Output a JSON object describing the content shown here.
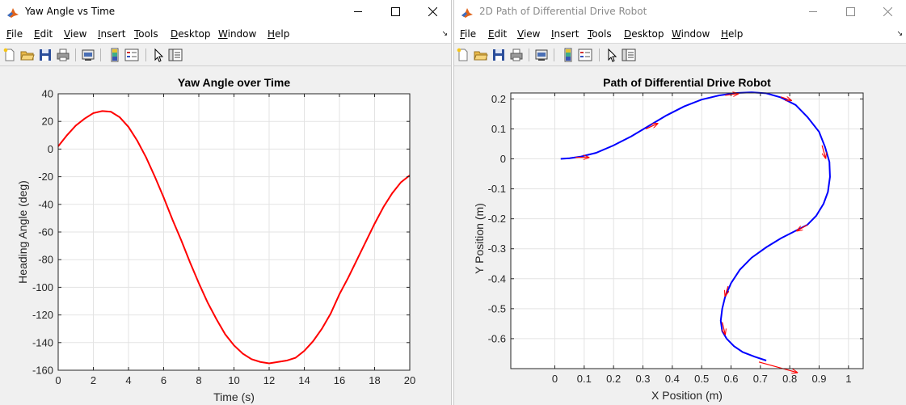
{
  "colors": {
    "window_bg": "#f0f0f0",
    "grid": "#e3e3e3",
    "axis": "#262626",
    "yaw_line": "#ff0000",
    "path_line": "#0000ff",
    "arrow": "#ff0000"
  },
  "menu_items": [
    "File",
    "Edit",
    "View",
    "Insert",
    "Tools",
    "Desktop",
    "Window",
    "Help"
  ],
  "toolbar_icons": [
    "new-figure-icon",
    "open-file-icon",
    "save-icon",
    "print-icon",
    "print-preview-icon",
    "colorbar-icon",
    "legend-icon",
    "pointer-icon",
    "property-editor-icon"
  ],
  "windows": [
    {
      "title": "Yaw Angle vs Time",
      "active": true
    },
    {
      "title": "2D Path of Differential Drive Robot",
      "active": false
    }
  ],
  "chart_data": [
    {
      "type": "line",
      "title": "Yaw Angle over Time",
      "xlabel": "Time (s)",
      "ylabel": "Heading Angle (deg)",
      "xlim": [
        0,
        20
      ],
      "ylim": [
        -160,
        40
      ],
      "xticks": [
        "0",
        "2",
        "4",
        "6",
        "8",
        "10",
        "12",
        "14",
        "16",
        "18",
        "20"
      ],
      "yticks": [
        "40",
        "20",
        "0",
        "-20",
        "-40",
        "-60",
        "-80",
        "-100",
        "-120",
        "-140",
        "-160"
      ],
      "grid": true,
      "series": [
        {
          "color": "#ff0000",
          "x": [
            0,
            0.5,
            1,
            1.5,
            2,
            2.5,
            3,
            3.5,
            4,
            4.5,
            5,
            5.5,
            6,
            6.5,
            7,
            7.5,
            8,
            8.5,
            9,
            9.5,
            10,
            10.5,
            11,
            11.5,
            12,
            12.5,
            13,
            13.5,
            14,
            14.5,
            15,
            15.5,
            16,
            16.5,
            17,
            17.5,
            18,
            18.5,
            19,
            19.5,
            20
          ],
          "y": [
            2,
            10,
            17,
            22,
            26,
            27.5,
            27,
            23,
            16,
            6,
            -6,
            -20,
            -35,
            -51,
            -66,
            -82,
            -97,
            -111,
            -123,
            -134,
            -142,
            -148,
            -152,
            -154,
            -155,
            -154,
            -153,
            -151,
            -146,
            -139,
            -130,
            -119,
            -105,
            -93,
            -80,
            -67,
            -54,
            -42,
            -32,
            -24,
            -19
          ]
        }
      ]
    },
    {
      "type": "line",
      "title": "Path of Differential Drive Robot",
      "xlabel": "X Position (m)",
      "ylabel": "Y Position (m)",
      "xlim": [
        -0.15,
        1.05
      ],
      "ylim": [
        -0.7,
        0.22
      ],
      "xticks": [
        "0",
        "0.1",
        "0.2",
        "0.3",
        "0.4",
        "0.5",
        "0.6",
        "0.7",
        "0.8",
        "0.9",
        "1"
      ],
      "yticks": [
        "0.2",
        "0.1",
        "0",
        "-0.1",
        "-0.2",
        "-0.3",
        "-0.4",
        "-0.5",
        "-0.6"
      ],
      "grid": true,
      "series": [
        {
          "color": "#0000ff",
          "x": [
            0.02,
            0.05,
            0.09,
            0.14,
            0.2,
            0.26,
            0.32,
            0.38,
            0.44,
            0.5,
            0.56,
            0.62,
            0.67,
            0.72,
            0.77,
            0.82,
            0.86,
            0.9,
            0.92,
            0.935,
            0.937,
            0.93,
            0.915,
            0.89,
            0.86,
            0.82,
            0.77,
            0.72,
            0.67,
            0.63,
            0.6,
            0.58,
            0.57,
            0.565,
            0.57,
            0.585,
            0.61,
            0.64,
            0.68,
            0.72
          ],
          "y": [
            0.0,
            0.002,
            0.008,
            0.02,
            0.045,
            0.075,
            0.11,
            0.145,
            0.175,
            0.198,
            0.212,
            0.22,
            0.222,
            0.219,
            0.205,
            0.18,
            0.14,
            0.09,
            0.04,
            -0.01,
            -0.06,
            -0.11,
            -0.15,
            -0.19,
            -0.22,
            -0.24,
            -0.265,
            -0.295,
            -0.33,
            -0.37,
            -0.415,
            -0.46,
            -0.5,
            -0.54,
            -0.575,
            -0.6,
            -0.625,
            -0.645,
            -0.66,
            -0.673
          ]
        }
      ],
      "arrows": [
        {
          "x": 0.07,
          "y": 0.005,
          "dx": 0.045,
          "dy": 0.0
        },
        {
          "x": 0.31,
          "y": 0.1,
          "dx": 0.04,
          "dy": 0.018
        },
        {
          "x": 0.58,
          "y": 0.212,
          "dx": 0.045,
          "dy": 0.006
        },
        {
          "x": 0.77,
          "y": 0.207,
          "dx": 0.035,
          "dy": -0.012
        },
        {
          "x": 0.91,
          "y": 0.045,
          "dx": 0.012,
          "dy": -0.042
        },
        {
          "x": 0.86,
          "y": -0.22,
          "dx": -0.035,
          "dy": -0.02
        },
        {
          "x": 0.59,
          "y": -0.425,
          "dx": -0.01,
          "dy": -0.032
        },
        {
          "x": 0.57,
          "y": -0.545,
          "dx": 0.01,
          "dy": -0.04
        },
        {
          "x": 0.695,
          "y": -0.678,
          "dx": 0.13,
          "dy": -0.035
        }
      ]
    }
  ]
}
